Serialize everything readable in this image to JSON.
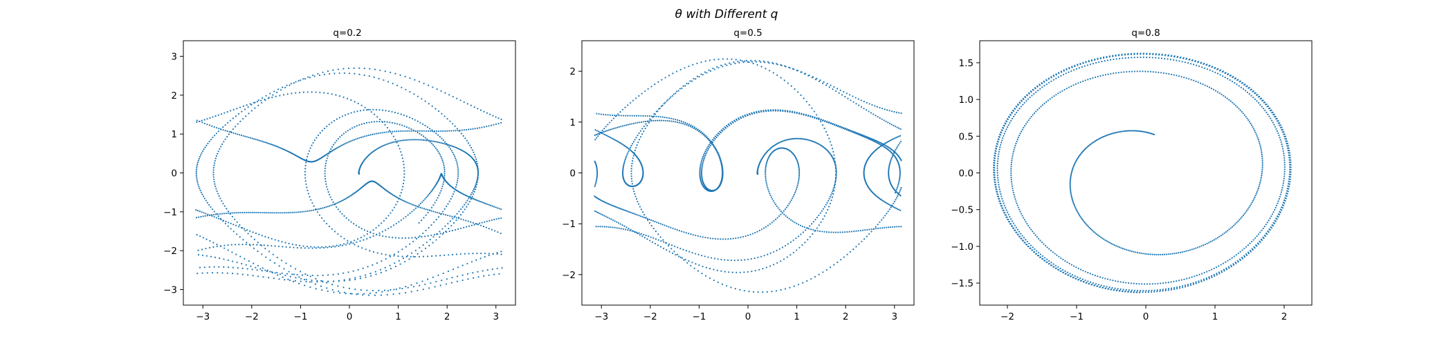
{
  "figure": {
    "title": "θ with Different q",
    "marker_color": "#1f77b4"
  },
  "chart_data": [
    {
      "type": "scatter",
      "title": "q=0.2",
      "xlabel": "",
      "ylabel": "",
      "xlim": [
        -3.4,
        3.4
      ],
      "ylim": [
        -3.4,
        3.4
      ],
      "xticks": [
        -3,
        -2,
        -1,
        0,
        1,
        2,
        3
      ],
      "yticks": [
        -3,
        -2,
        -1,
        0,
        1,
        2,
        3
      ],
      "q": 0.2,
      "theta0": 0.2,
      "omega0": 0.0,
      "trajectory": "driven damped pendulum phase portrait (angle wrapped to [-π, π])",
      "grid": false,
      "legend": "none"
    },
    {
      "type": "scatter",
      "title": "q=0.5",
      "xlabel": "",
      "ylabel": "",
      "xlim": [
        -3.4,
        3.4
      ],
      "ylim": [
        -2.6,
        2.6
      ],
      "xticks": [
        -3,
        -2,
        -1,
        0,
        1,
        2,
        3
      ],
      "yticks": [
        -2,
        -1,
        0,
        1,
        2
      ],
      "q": 0.5,
      "theta0": 0.2,
      "omega0": 0.0,
      "trajectory": "driven damped pendulum phase portrait (angle wrapped to [-π, π])",
      "grid": false,
      "legend": "none"
    },
    {
      "type": "scatter",
      "title": "q=0.8",
      "xlabel": "",
      "ylabel": "",
      "xlim": [
        -2.4,
        2.4
      ],
      "ylim": [
        -1.8,
        1.8
      ],
      "xticks": [
        -2,
        -1,
        0,
        1,
        2
      ],
      "yticks": [
        -1.5,
        -1.0,
        -0.5,
        0.0,
        0.5,
        1.0,
        1.5
      ],
      "q": 0.8,
      "theta0": 0.2,
      "omega0": 0.0,
      "trajectory": "spiral out to a closed limit cycle",
      "grid": false,
      "legend": "none"
    }
  ]
}
